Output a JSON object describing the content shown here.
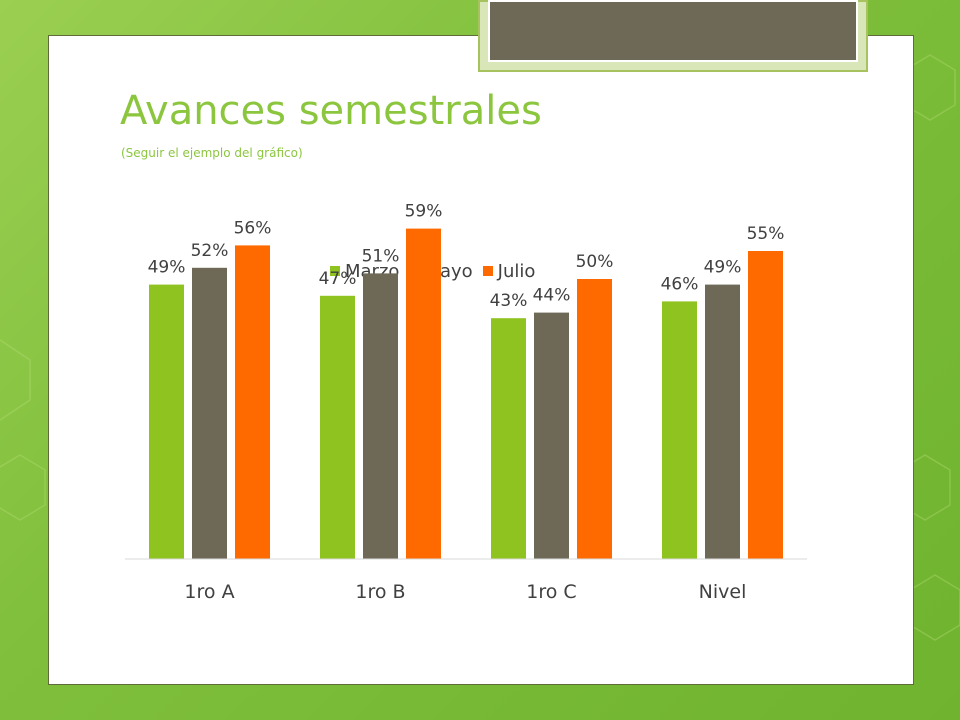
{
  "slide": {
    "title": "Avances semestrales",
    "subtitle": "(Seguir el ejemplo del gráfico)"
  },
  "colors": {
    "marzo": "#8fc31f",
    "mayo": "#6e6957",
    "julio": "#ff6a00",
    "title": "#8cc63f"
  },
  "legend": {
    "items": [
      {
        "label": "Marzo",
        "color": "#8fc31f"
      },
      {
        "label": "Mayo",
        "color": "#6e6957"
      },
      {
        "label": "Julio",
        "color": "#ff6a00"
      }
    ]
  },
  "chart_data": {
    "type": "bar",
    "title": "",
    "xlabel": "",
    "ylabel": "",
    "ylim": [
      0,
      100
    ],
    "grid": false,
    "legend_position": "top",
    "categories": [
      "1ro A",
      "1ro B",
      "1ro C",
      "Nivel"
    ],
    "series": [
      {
        "name": "Marzo",
        "color": "#8fc31f",
        "values": [
          49,
          47,
          43,
          46
        ],
        "labels": [
          "49%",
          "47%",
          "43%",
          "46%"
        ]
      },
      {
        "name": "Mayo",
        "color": "#6e6957",
        "values": [
          52,
          51,
          44,
          49
        ],
        "labels": [
          "52%",
          "51%",
          "44%",
          "49%"
        ]
      },
      {
        "name": "Julio",
        "color": "#ff6a00",
        "values": [
          56,
          59,
          50,
          55
        ],
        "labels": [
          "56%",
          "59%",
          "50%",
          "55%"
        ]
      }
    ]
  }
}
